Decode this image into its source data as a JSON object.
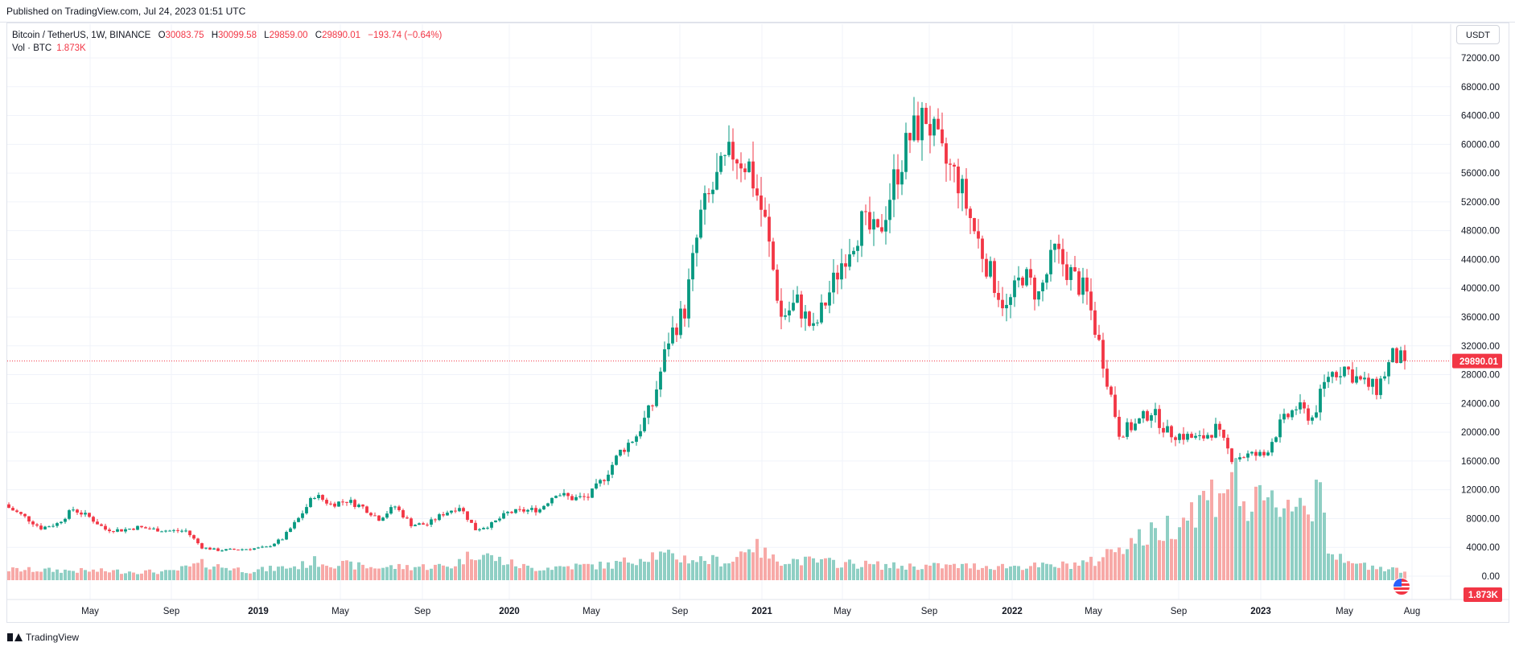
{
  "header": {
    "published": "Published on TradingView.com, Jul 24, 2023 01:51 UTC"
  },
  "legend": {
    "symbol": "Bitcoin / TetherUS, 1W, BINANCE",
    "o_label": "O",
    "o": "30083.75",
    "h_label": "H",
    "h": "30099.58",
    "l_label": "L",
    "l": "29859.00",
    "c_label": "C",
    "c": "29890.01",
    "change": "−193.74 (−0.64%)",
    "vol_label": "Vol · BTC",
    "vol": "1.873K"
  },
  "currency_button": "USDT",
  "footer": {
    "brand": "TradingView"
  },
  "colors": {
    "up": "#089981",
    "down": "#f23645",
    "vol_up": "#8fcfc4",
    "vol_down": "#f7a9a7",
    "grid": "#f0f3fa",
    "axis_text": "#131722"
  },
  "icons": {
    "flag": "us-flag-icon",
    "logo": "tradingview-logo-icon"
  },
  "chart_data": {
    "type": "candlestick",
    "symbol": "Bitcoin / TetherUS",
    "interval": "1W",
    "exchange": "BINANCE",
    "y_axis": {
      "range": [
        -2000,
        74000
      ],
      "ticks": [
        "72000.00",
        "68000.00",
        "64000.00",
        "60000.00",
        "56000.00",
        "52000.00",
        "48000.00",
        "44000.00",
        "40000.00",
        "36000.00",
        "32000.00",
        "28000.00",
        "24000.00",
        "20000.00",
        "16000.00",
        "12000.00",
        "8000.00",
        "4000.00",
        "0.00"
      ]
    },
    "x_axis": {
      "labels": [
        "May",
        "Sep",
        "2019",
        "May",
        "Sep",
        "2020",
        "May",
        "Sep",
        "2021",
        "May",
        "Sep",
        "2022",
        "May",
        "Sep",
        "2023",
        "May",
        "Aug"
      ]
    },
    "last_price": "29890.01",
    "last_volume": "1.873K",
    "grid": true,
    "weekly_close_anchors": [
      [
        0,
        9500
      ],
      [
        4,
        8200
      ],
      [
        8,
        6700
      ],
      [
        12,
        7300
      ],
      [
        16,
        9300
      ],
      [
        20,
        8200
      ],
      [
        24,
        6500
      ],
      [
        28,
        6400
      ],
      [
        32,
        6800
      ],
      [
        36,
        6500
      ],
      [
        40,
        6300
      ],
      [
        44,
        6300
      ],
      [
        48,
        4000
      ],
      [
        52,
        3600
      ],
      [
        56,
        3700
      ],
      [
        60,
        3800
      ],
      [
        64,
        4000
      ],
      [
        68,
        5200
      ],
      [
        72,
        8000
      ],
      [
        76,
        11300
      ],
      [
        80,
        10000
      ],
      [
        84,
        10500
      ],
      [
        88,
        9600
      ],
      [
        92,
        8000
      ],
      [
        96,
        9700
      ],
      [
        100,
        7200
      ],
      [
        104,
        7200
      ],
      [
        108,
        8700
      ],
      [
        112,
        9700
      ],
      [
        116,
        6500
      ],
      [
        120,
        7200
      ],
      [
        124,
        8800
      ],
      [
        128,
        9100
      ],
      [
        132,
        9300
      ],
      [
        136,
        11600
      ],
      [
        140,
        10800
      ],
      [
        144,
        11000
      ],
      [
        148,
        13700
      ],
      [
        152,
        17300
      ],
      [
        156,
        19600
      ],
      [
        160,
        23800
      ],
      [
        164,
        33000
      ],
      [
        168,
        37000
      ],
      [
        172,
        50000
      ],
      [
        176,
        55000
      ],
      [
        180,
        59000
      ],
      [
        184,
        57000
      ],
      [
        188,
        49000
      ],
      [
        192,
        36000
      ],
      [
        196,
        38000
      ],
      [
        200,
        34000
      ],
      [
        204,
        39500
      ],
      [
        208,
        45000
      ],
      [
        212,
        49000
      ],
      [
        216,
        47000
      ],
      [
        220,
        55000
      ],
      [
        224,
        61000
      ],
      [
        228,
        64000
      ],
      [
        232,
        58000
      ],
      [
        236,
        55000
      ],
      [
        240,
        48000
      ],
      [
        244,
        42000
      ],
      [
        248,
        37000
      ],
      [
        252,
        42000
      ],
      [
        256,
        39000
      ],
      [
        260,
        45000
      ],
      [
        264,
        42000
      ],
      [
        268,
        39000
      ],
      [
        272,
        30000
      ],
      [
        276,
        20000
      ],
      [
        280,
        21000
      ],
      [
        284,
        23000
      ],
      [
        288,
        20000
      ],
      [
        292,
        19500
      ],
      [
        296,
        19000
      ],
      [
        300,
        20500
      ],
      [
        304,
        16500
      ],
      [
        308,
        16800
      ],
      [
        312,
        16800
      ],
      [
        316,
        21000
      ],
      [
        320,
        23500
      ],
      [
        324,
        22000
      ],
      [
        328,
        28000
      ],
      [
        332,
        29000
      ],
      [
        336,
        27000
      ],
      [
        340,
        26000
      ],
      [
        344,
        30500
      ],
      [
        347,
        29890
      ]
    ],
    "volume_anchors_k": [
      [
        0,
        45
      ],
      [
        20,
        40
      ],
      [
        40,
        35
      ],
      [
        48,
        70
      ],
      [
        60,
        40
      ],
      [
        72,
        60
      ],
      [
        76,
        80
      ],
      [
        90,
        55
      ],
      [
        110,
        60
      ],
      [
        116,
        120
      ],
      [
        124,
        75
      ],
      [
        130,
        50
      ],
      [
        140,
        60
      ],
      [
        150,
        65
      ],
      [
        160,
        110
      ],
      [
        170,
        90
      ],
      [
        180,
        80
      ],
      [
        184,
        160
      ],
      [
        190,
        90
      ],
      [
        200,
        80
      ],
      [
        220,
        60
      ],
      [
        240,
        60
      ],
      [
        260,
        60
      ],
      [
        270,
        80
      ],
      [
        276,
        150
      ],
      [
        285,
        200
      ],
      [
        290,
        250
      ],
      [
        296,
        330
      ],
      [
        300,
        380
      ],
      [
        304,
        460
      ],
      [
        308,
        300
      ],
      [
        312,
        320
      ],
      [
        316,
        330
      ],
      [
        320,
        350
      ],
      [
        324,
        290
      ],
      [
        326,
        530
      ],
      [
        328,
        140
      ],
      [
        332,
        70
      ],
      [
        340,
        60
      ],
      [
        347,
        40
      ]
    ]
  }
}
